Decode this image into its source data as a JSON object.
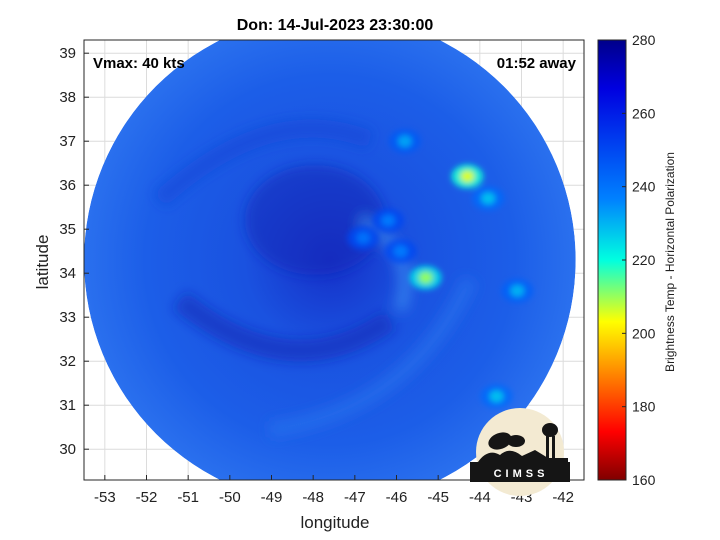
{
  "chart_data": {
    "type": "heatmap",
    "title": "Don: 14-Jul-2023 23:30:00",
    "xlabel": "longitude",
    "ylabel": "latitude",
    "xlim": [
      -53.5,
      -41.5
    ],
    "ylim": [
      29.3,
      39.3
    ],
    "xticks": [
      -53,
      -52,
      -51,
      -50,
      -49,
      -48,
      -47,
      -46,
      -45,
      -44,
      -43,
      -42
    ],
    "yticks": [
      30,
      31,
      32,
      33,
      34,
      35,
      36,
      37,
      38,
      39
    ],
    "grid": true,
    "annotations": {
      "vmax": "Vmax: 40 kts",
      "time_away": "01:52 away"
    },
    "colorbar": {
      "label": "Brightness Temp - Horizontal Polarization",
      "min": 160,
      "max": 280,
      "ticks": [
        160,
        180,
        200,
        220,
        240,
        260,
        280
      ],
      "colormap": "jet"
    },
    "swath": {
      "center_lon": -47.6,
      "center_lat": 34.3,
      "radius_deg": 5.9
    },
    "features": [
      {
        "lon": -44.3,
        "lat": 36.2,
        "value": 205
      },
      {
        "lon": -45.3,
        "lat": 33.9,
        "value": 210
      },
      {
        "lon": -45.8,
        "lat": 37.0,
        "value": 232
      },
      {
        "lon": -43.8,
        "lat": 35.7,
        "value": 228
      },
      {
        "lon": -43.1,
        "lat": 33.6,
        "value": 230
      },
      {
        "lon": -43.6,
        "lat": 31.2,
        "value": 228
      },
      {
        "lon": -46.2,
        "lat": 35.2,
        "value": 238
      },
      {
        "lon": -46.8,
        "lat": 34.8,
        "value": 240
      },
      {
        "lon": -45.9,
        "lat": 34.5,
        "value": 238
      }
    ],
    "background_value": 254,
    "logo_text": "CIMSS"
  }
}
